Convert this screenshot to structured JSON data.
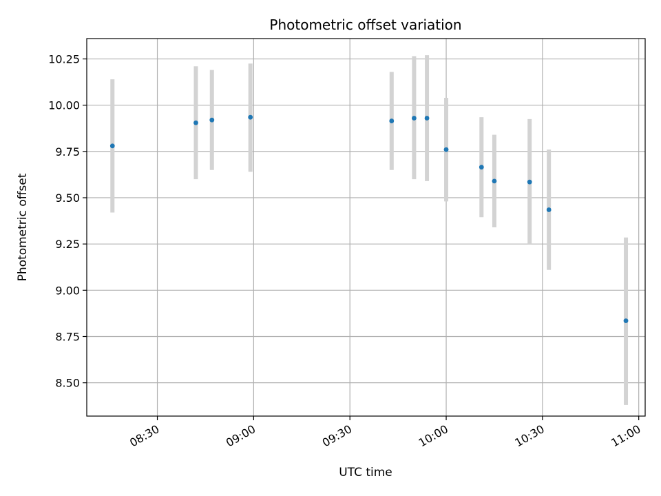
{
  "chart_data": {
    "type": "scatter",
    "title": "Photometric offset variation",
    "xlabel": "UTC time",
    "ylabel": "Photometric offset",
    "x_axis_kind": "time",
    "xlim": [
      "08:08",
      "11:02"
    ],
    "ylim": [
      8.32,
      10.36
    ],
    "x_ticks": [
      "08:30",
      "09:00",
      "09:30",
      "10:00",
      "10:30",
      "11:00"
    ],
    "y_ticks": [
      "8.50",
      "8.75",
      "9.00",
      "9.25",
      "9.50",
      "9.75",
      "10.00",
      "10.25"
    ],
    "grid": true,
    "colors": {
      "point": "#1f77b4",
      "errorbar": "#d3d3d3",
      "grid": "#b0b0b0"
    },
    "points": [
      {
        "time": "08:16",
        "value": 9.78,
        "lower": 9.42,
        "upper": 10.14
      },
      {
        "time": "08:42",
        "value": 9.905,
        "lower": 9.6,
        "upper": 10.21
      },
      {
        "time": "08:47",
        "value": 9.92,
        "lower": 9.65,
        "upper": 10.19
      },
      {
        "time": "08:59",
        "value": 9.935,
        "lower": 9.64,
        "upper": 10.225
      },
      {
        "time": "09:43",
        "value": 9.915,
        "lower": 9.65,
        "upper": 10.18
      },
      {
        "time": "09:50",
        "value": 9.93,
        "lower": 9.6,
        "upper": 10.265
      },
      {
        "time": "09:54",
        "value": 9.93,
        "lower": 9.59,
        "upper": 10.27
      },
      {
        "time": "10:00",
        "value": 9.76,
        "lower": 9.48,
        "upper": 10.04
      },
      {
        "time": "10:11",
        "value": 9.665,
        "lower": 9.395,
        "upper": 9.935
      },
      {
        "time": "10:15",
        "value": 9.59,
        "lower": 9.34,
        "upper": 9.84
      },
      {
        "time": "10:26",
        "value": 9.585,
        "lower": 9.25,
        "upper": 9.925
      },
      {
        "time": "10:32",
        "value": 9.435,
        "lower": 9.11,
        "upper": 9.76
      },
      {
        "time": "10:56",
        "value": 8.835,
        "lower": 8.38,
        "upper": 9.285
      }
    ]
  }
}
